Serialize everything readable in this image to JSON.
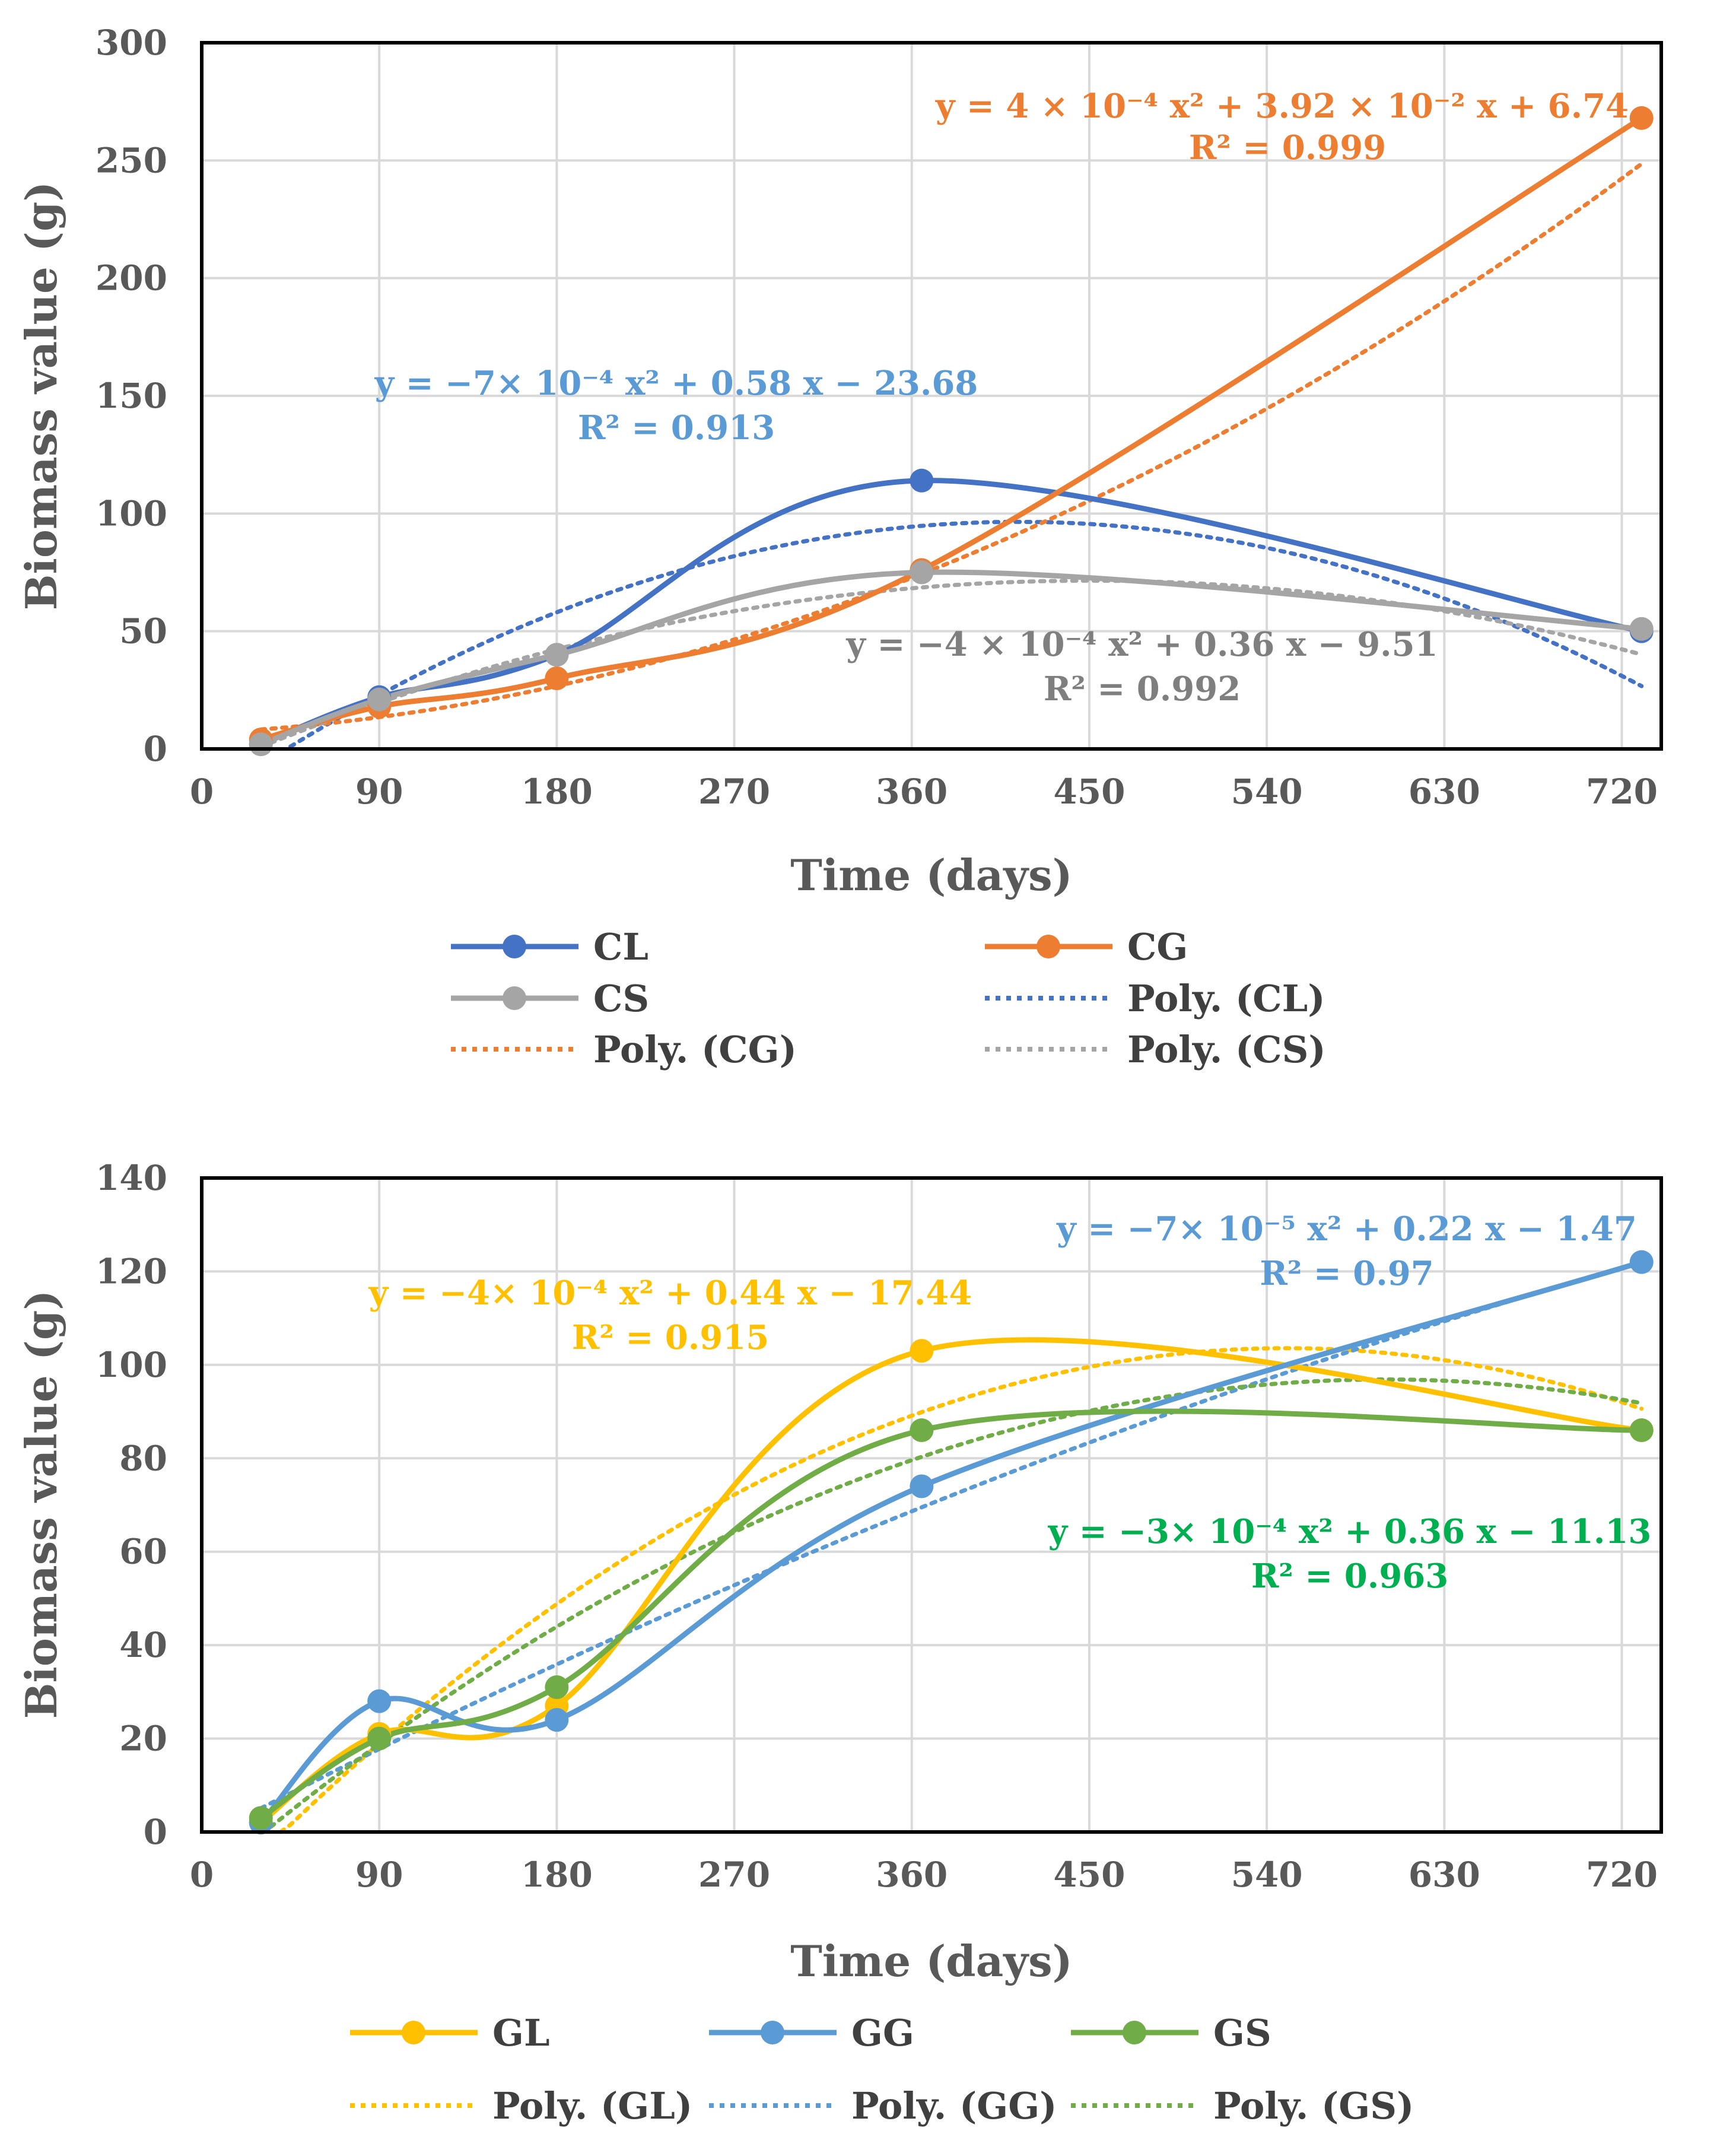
{
  "charts": [
    {
      "type": "line",
      "xlabel": "Time (days)",
      "ylabel": "Biomass value (g)",
      "xlim": [
        0,
        740
      ],
      "ylim": [
        0,
        300
      ],
      "xticks": [
        0,
        90,
        180,
        270,
        360,
        450,
        540,
        630,
        720
      ],
      "yticks": [
        0,
        50,
        100,
        150,
        200,
        250,
        300
      ],
      "grid": true,
      "legend_position": "bottom",
      "x": [
        30,
        90,
        180,
        365,
        730
      ],
      "series": [
        {
          "name": "CL",
          "color": "#4472C4",
          "values": [
            2,
            22,
            40,
            114,
            50
          ]
        },
        {
          "name": "CG",
          "color": "#ED7D31",
          "values": [
            4,
            18,
            30,
            76,
            268
          ]
        },
        {
          "name": "CS",
          "color": "#A5A5A5",
          "values": [
            2,
            21,
            40,
            75,
            51
          ]
        }
      ],
      "trendlines": [
        {
          "name": "Poly. (CL)",
          "color": "#4472C4",
          "coef": [
            -0.0007,
            0.58,
            -23.68
          ],
          "equation": "y = −7× 10⁻⁴ x² + 0.58 x − 23.68",
          "r2": "R² = 0.913",
          "eq_color": "#5B9BD5"
        },
        {
          "name": "Poly. (CG)",
          "color": "#ED7D31",
          "coef": [
            0.0004,
            0.0392,
            6.74
          ],
          "equation": "y = 4 × 10⁻⁴ x² + 3.92 × 10⁻²  x + 6.74",
          "r2": "R² = 0.999",
          "eq_color": "#ED7D31"
        },
        {
          "name": "Poly. (CS)",
          "color": "#A5A5A5",
          "coef": [
            -0.0004,
            0.36,
            -9.51
          ],
          "equation": "y = −4 × 10⁻⁴ x² + 0.36 x − 9.51",
          "r2": "R² = 0.992",
          "eq_color": "#7F7F7F"
        }
      ]
    },
    {
      "type": "line",
      "xlabel": "Time (days)",
      "ylabel": "Biomass value (g)",
      "xlim": [
        0,
        740
      ],
      "ylim": [
        0,
        140
      ],
      "xticks": [
        0,
        90,
        180,
        270,
        360,
        450,
        540,
        630,
        720
      ],
      "yticks": [
        0,
        20,
        40,
        60,
        80,
        100,
        120,
        140
      ],
      "grid": true,
      "legend_position": "bottom",
      "x": [
        30,
        90,
        180,
        365,
        730
      ],
      "series": [
        {
          "name": "GL",
          "color": "#FFC000",
          "values": [
            2,
            21,
            27,
            103,
            86
          ]
        },
        {
          "name": "GG",
          "color": "#5B9BD5",
          "values": [
            2,
            28,
            24,
            74,
            122
          ]
        },
        {
          "name": "GS",
          "color": "#70AD47",
          "values": [
            3,
            20,
            31,
            86,
            86
          ]
        }
      ],
      "trendlines": [
        {
          "name": "Poly. (GL)",
          "color": "#FFC000",
          "coef": [
            -0.0004,
            0.44,
            -17.44
          ],
          "equation": "y = −4× 10⁻⁴  x² + 0.44 x − 17.44",
          "r2": "R² = 0.915",
          "eq_color": "#FFC000"
        },
        {
          "name": "Poly. (GG)",
          "color": "#5B9BD5",
          "coef": [
            -7e-05,
            0.22,
            -1.47
          ],
          "equation": "y = −7× 10⁻⁵ x² + 0.22 x − 1.47",
          "r2": "R² = 0.97",
          "eq_color": "#5B9BD5"
        },
        {
          "name": "Poly. (GS)",
          "color": "#70AD47",
          "coef": [
            -0.0003,
            0.36,
            -11.13
          ],
          "equation": "y = −3× 10⁻⁴ x² + 0.36 x − 11.13",
          "r2": "R² = 0.963",
          "eq_color": "#00B050"
        }
      ]
    }
  ]
}
